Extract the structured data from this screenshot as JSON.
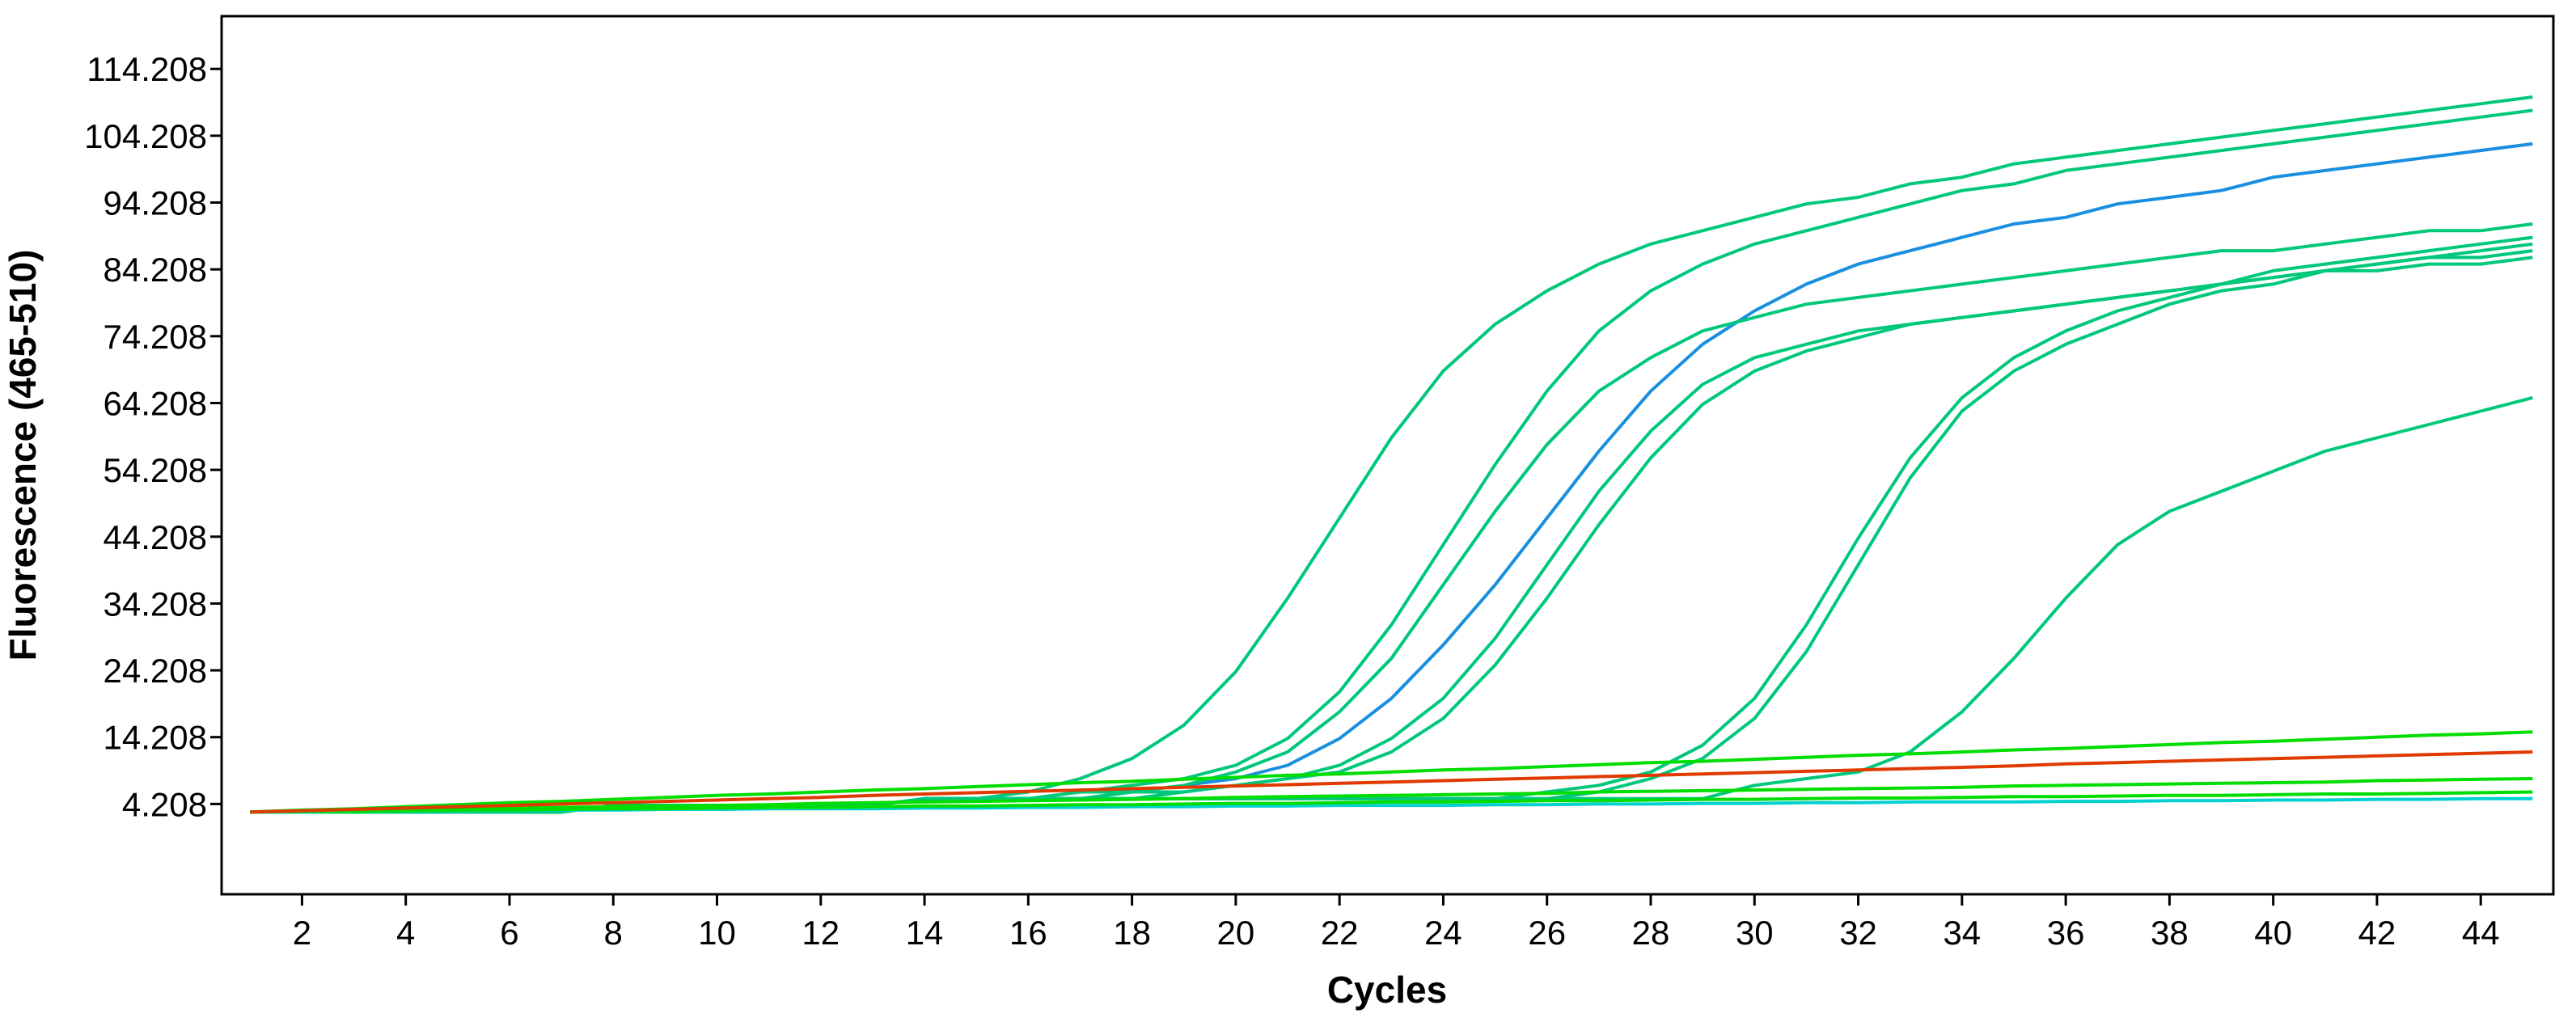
{
  "chart_data": {
    "type": "line",
    "x_label": "Cycles",
    "y_label": "Fluorescence (465-510)",
    "x": [
      1,
      2,
      3,
      4,
      5,
      6,
      7,
      8,
      9,
      10,
      11,
      12,
      13,
      14,
      15,
      16,
      17,
      18,
      19,
      20,
      21,
      22,
      23,
      24,
      25,
      26,
      27,
      28,
      29,
      30,
      31,
      32,
      33,
      34,
      35,
      36,
      37,
      38,
      39,
      40,
      41,
      42,
      43,
      44,
      45
    ],
    "xlim": [
      0.45,
      45.4
    ],
    "xticks": [
      2,
      4,
      6,
      8,
      10,
      12,
      14,
      16,
      18,
      20,
      22,
      24,
      26,
      28,
      30,
      32,
      34,
      36,
      38,
      40,
      42,
      44
    ],
    "ylim": [
      -9.3,
      122.1
    ],
    "yticks": [
      4.208,
      14.208,
      24.208,
      34.208,
      44.208,
      54.208,
      64.208,
      74.208,
      84.208,
      94.208,
      104.208,
      114.208
    ],
    "series": [
      {
        "color": "#00c87a",
        "values": [
          3,
          3,
          3,
          3,
          3,
          3,
          3,
          4,
          4,
          4,
          4,
          4,
          4,
          5,
          5,
          6,
          8,
          11,
          16,
          24,
          35,
          47,
          59,
          69,
          76,
          81,
          85,
          88,
          90,
          92,
          94,
          95,
          97,
          98,
          100,
          101,
          102,
          103,
          104,
          105,
          106,
          107,
          108,
          109,
          110
        ]
      },
      {
        "color": "#00c87a",
        "values": [
          3,
          3,
          3,
          3,
          3,
          3,
          3,
          4,
          4,
          4,
          4,
          4,
          4,
          5,
          5,
          5,
          6,
          7,
          8,
          10,
          14,
          21,
          31,
          43,
          55,
          66,
          75,
          81,
          85,
          88,
          90,
          92,
          94,
          96,
          97,
          99,
          100,
          101,
          102,
          103,
          104,
          105,
          106,
          107,
          108
        ]
      },
      {
        "color": "#1a8fe0",
        "values": [
          3,
          3,
          3,
          3,
          3,
          3,
          3,
          4,
          4,
          4,
          4,
          4,
          4,
          5,
          5,
          5,
          5,
          6,
          7,
          8,
          10,
          14,
          20,
          28,
          37,
          47,
          57,
          66,
          73,
          78,
          82,
          85,
          87,
          89,
          91,
          92,
          94,
          95,
          96,
          98,
          99,
          100,
          101,
          102,
          103
        ]
      },
      {
        "color": "#00c87a",
        "values": [
          3,
          3,
          3,
          3,
          3,
          3,
          3,
          4,
          4,
          4,
          4,
          4,
          4,
          5,
          5,
          5,
          6,
          6,
          7,
          9,
          12,
          18,
          26,
          37,
          48,
          58,
          66,
          71,
          75,
          77,
          79,
          80,
          81,
          82,
          83,
          84,
          85,
          86,
          87,
          87,
          88,
          89,
          90,
          90,
          91
        ]
      },
      {
        "color": "#00c87a",
        "values": [
          3,
          3,
          3,
          3,
          3,
          3,
          3,
          4,
          4,
          4,
          4,
          4,
          4,
          5,
          5,
          5,
          5,
          6,
          6,
          7,
          8,
          10,
          14,
          20,
          29,
          40,
          51,
          60,
          67,
          71,
          73,
          75,
          76,
          77,
          78,
          79,
          80,
          81,
          82,
          83,
          84,
          85,
          86,
          87,
          88
        ]
      },
      {
        "color": "#00c87a",
        "values": [
          3,
          3,
          3,
          3,
          3,
          3,
          3,
          4,
          4,
          4,
          4,
          4,
          4,
          5,
          5,
          5,
          5,
          5,
          6,
          7,
          8,
          9,
          12,
          17,
          25,
          35,
          46,
          56,
          64,
          69,
          72,
          74,
          76,
          77,
          78,
          79,
          80,
          81,
          82,
          83,
          84,
          84,
          85,
          85,
          86
        ]
      },
      {
        "color": "#00c87a",
        "values": [
          3,
          3,
          3,
          3,
          3,
          3,
          3,
          4,
          4,
          4,
          4,
          4,
          4,
          5,
          5,
          5,
          5,
          5,
          5,
          5,
          5,
          5,
          5,
          5,
          5,
          6,
          7,
          9,
          13,
          20,
          31,
          44,
          56,
          65,
          71,
          75,
          78,
          80,
          82,
          84,
          85,
          86,
          87,
          88,
          89
        ]
      },
      {
        "color": "#00c87a",
        "values": [
          3,
          3,
          3,
          3,
          3,
          3,
          3,
          4,
          4,
          4,
          4,
          4,
          4,
          5,
          5,
          5,
          5,
          5,
          5,
          5,
          5,
          5,
          5,
          5,
          5,
          5,
          6,
          8,
          11,
          17,
          27,
          40,
          53,
          63,
          69,
          73,
          76,
          79,
          81,
          82,
          84,
          85,
          86,
          86,
          87
        ]
      },
      {
        "color": "#00c87a",
        "values": [
          3,
          3,
          3,
          3,
          3,
          3,
          3,
          4,
          4,
          4,
          4,
          4,
          4,
          5,
          5,
          5,
          5,
          5,
          5,
          5,
          5,
          5,
          5,
          5,
          5,
          5,
          5,
          5,
          5,
          7,
          8,
          9,
          12,
          18,
          26,
          35,
          43,
          48,
          51,
          54,
          57,
          59,
          61,
          63,
          65
        ]
      },
      {
        "color": "#00dd00",
        "values": [
          3,
          3.3,
          3.5,
          3.8,
          4.1,
          4.4,
          4.6,
          4.9,
          5.2,
          5.5,
          5.7,
          6,
          6.3,
          6.5,
          6.8,
          7.1,
          7.4,
          7.6,
          7.9,
          8.2,
          8.5,
          8.7,
          9,
          9.3,
          9.5,
          9.8,
          10.1,
          10.4,
          10.6,
          10.9,
          11.2,
          11.5,
          11.7,
          12,
          12.3,
          12.5,
          12.8,
          13.1,
          13.4,
          13.6,
          13.9,
          14.2,
          14.5,
          14.7,
          15
        ]
      },
      {
        "color": "#00dd00",
        "values": [
          3,
          3.1,
          3.2,
          3.3,
          3.5,
          3.6,
          3.7,
          3.8,
          3.9,
          4,
          4.1,
          4.3,
          4.4,
          4.5,
          4.6,
          4.7,
          4.8,
          4.9,
          5,
          5.2,
          5.3,
          5.4,
          5.5,
          5.6,
          5.7,
          5.8,
          6,
          6.1,
          6.2,
          6.3,
          6.4,
          6.5,
          6.6,
          6.7,
          6.9,
          7,
          7.1,
          7.2,
          7.3,
          7.4,
          7.5,
          7.7,
          7.8,
          7.9,
          8
        ]
      },
      {
        "color": "#00d0d0",
        "values": [
          3,
          3,
          3.1,
          3.1,
          3.2,
          3.2,
          3.3,
          3.3,
          3.4,
          3.4,
          3.5,
          3.5,
          3.5,
          3.6,
          3.6,
          3.7,
          3.7,
          3.8,
          3.8,
          3.9,
          3.9,
          4,
          4,
          4,
          4.1,
          4.1,
          4.2,
          4.2,
          4.3,
          4.3,
          4.4,
          4.4,
          4.5,
          4.5,
          4.5,
          4.6,
          4.6,
          4.7,
          4.7,
          4.8,
          4.8,
          4.9,
          4.9,
          5,
          5
        ]
      },
      {
        "color": "#00dd00",
        "values": [
          3,
          3.1,
          3.1,
          3.2,
          3.3,
          3.3,
          3.4,
          3.5,
          3.5,
          3.6,
          3.7,
          3.7,
          3.8,
          3.9,
          3.9,
          4,
          4.1,
          4.1,
          4.2,
          4.3,
          4.3,
          4.4,
          4.5,
          4.5,
          4.6,
          4.7,
          4.7,
          4.8,
          4.9,
          4.9,
          5,
          5.1,
          5.1,
          5.2,
          5.3,
          5.3,
          5.4,
          5.5,
          5.5,
          5.6,
          5.7,
          5.7,
          5.8,
          5.9,
          6
        ]
      },
      {
        "color": "#e03a00",
        "values": [
          3,
          3.2,
          3.4,
          3.6,
          3.8,
          4,
          4.2,
          4.4,
          4.6,
          4.8,
          5,
          5.2,
          5.5,
          5.7,
          5.9,
          6.1,
          6.3,
          6.5,
          6.7,
          6.9,
          7.1,
          7.3,
          7.5,
          7.7,
          7.9,
          8.1,
          8.3,
          8.5,
          8.7,
          8.9,
          9.1,
          9.3,
          9.5,
          9.7,
          9.9,
          10.2,
          10.4,
          10.6,
          10.8,
          11,
          11.2,
          11.4,
          11.6,
          11.8,
          12
        ]
      }
    ]
  }
}
